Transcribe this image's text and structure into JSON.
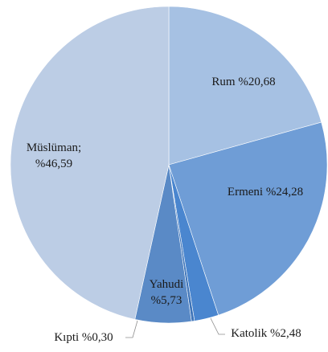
{
  "chart_data": {
    "type": "pie",
    "title": "",
    "series": [
      {
        "slices": [
          {
            "label_lines": [
              "Rum %20,68"
            ],
            "value": 20.68,
            "color": "#a6c1e3"
          },
          {
            "label_lines": [
              "Ermeni %24,28"
            ],
            "value": 24.28,
            "color": "#6f9dd6"
          },
          {
            "label_lines": [
              "Katolik %2,48"
            ],
            "value": 2.48,
            "color": "#4a86cf"
          },
          {
            "label_lines": [
              "Kıpti %0,30"
            ],
            "value": 0.3,
            "color": "#3f75b9"
          },
          {
            "label_lines": [
              "Yahudi",
              "%5,73"
            ],
            "value": 5.73,
            "color": "#5a8ac6"
          },
          {
            "label_lines": [
              "Müslüman;",
              "%46,59"
            ],
            "value": 46.59,
            "color": "#bccde5"
          }
        ]
      }
    ],
    "start_angle": "12 o'clock, clockwise",
    "legend": "none"
  }
}
